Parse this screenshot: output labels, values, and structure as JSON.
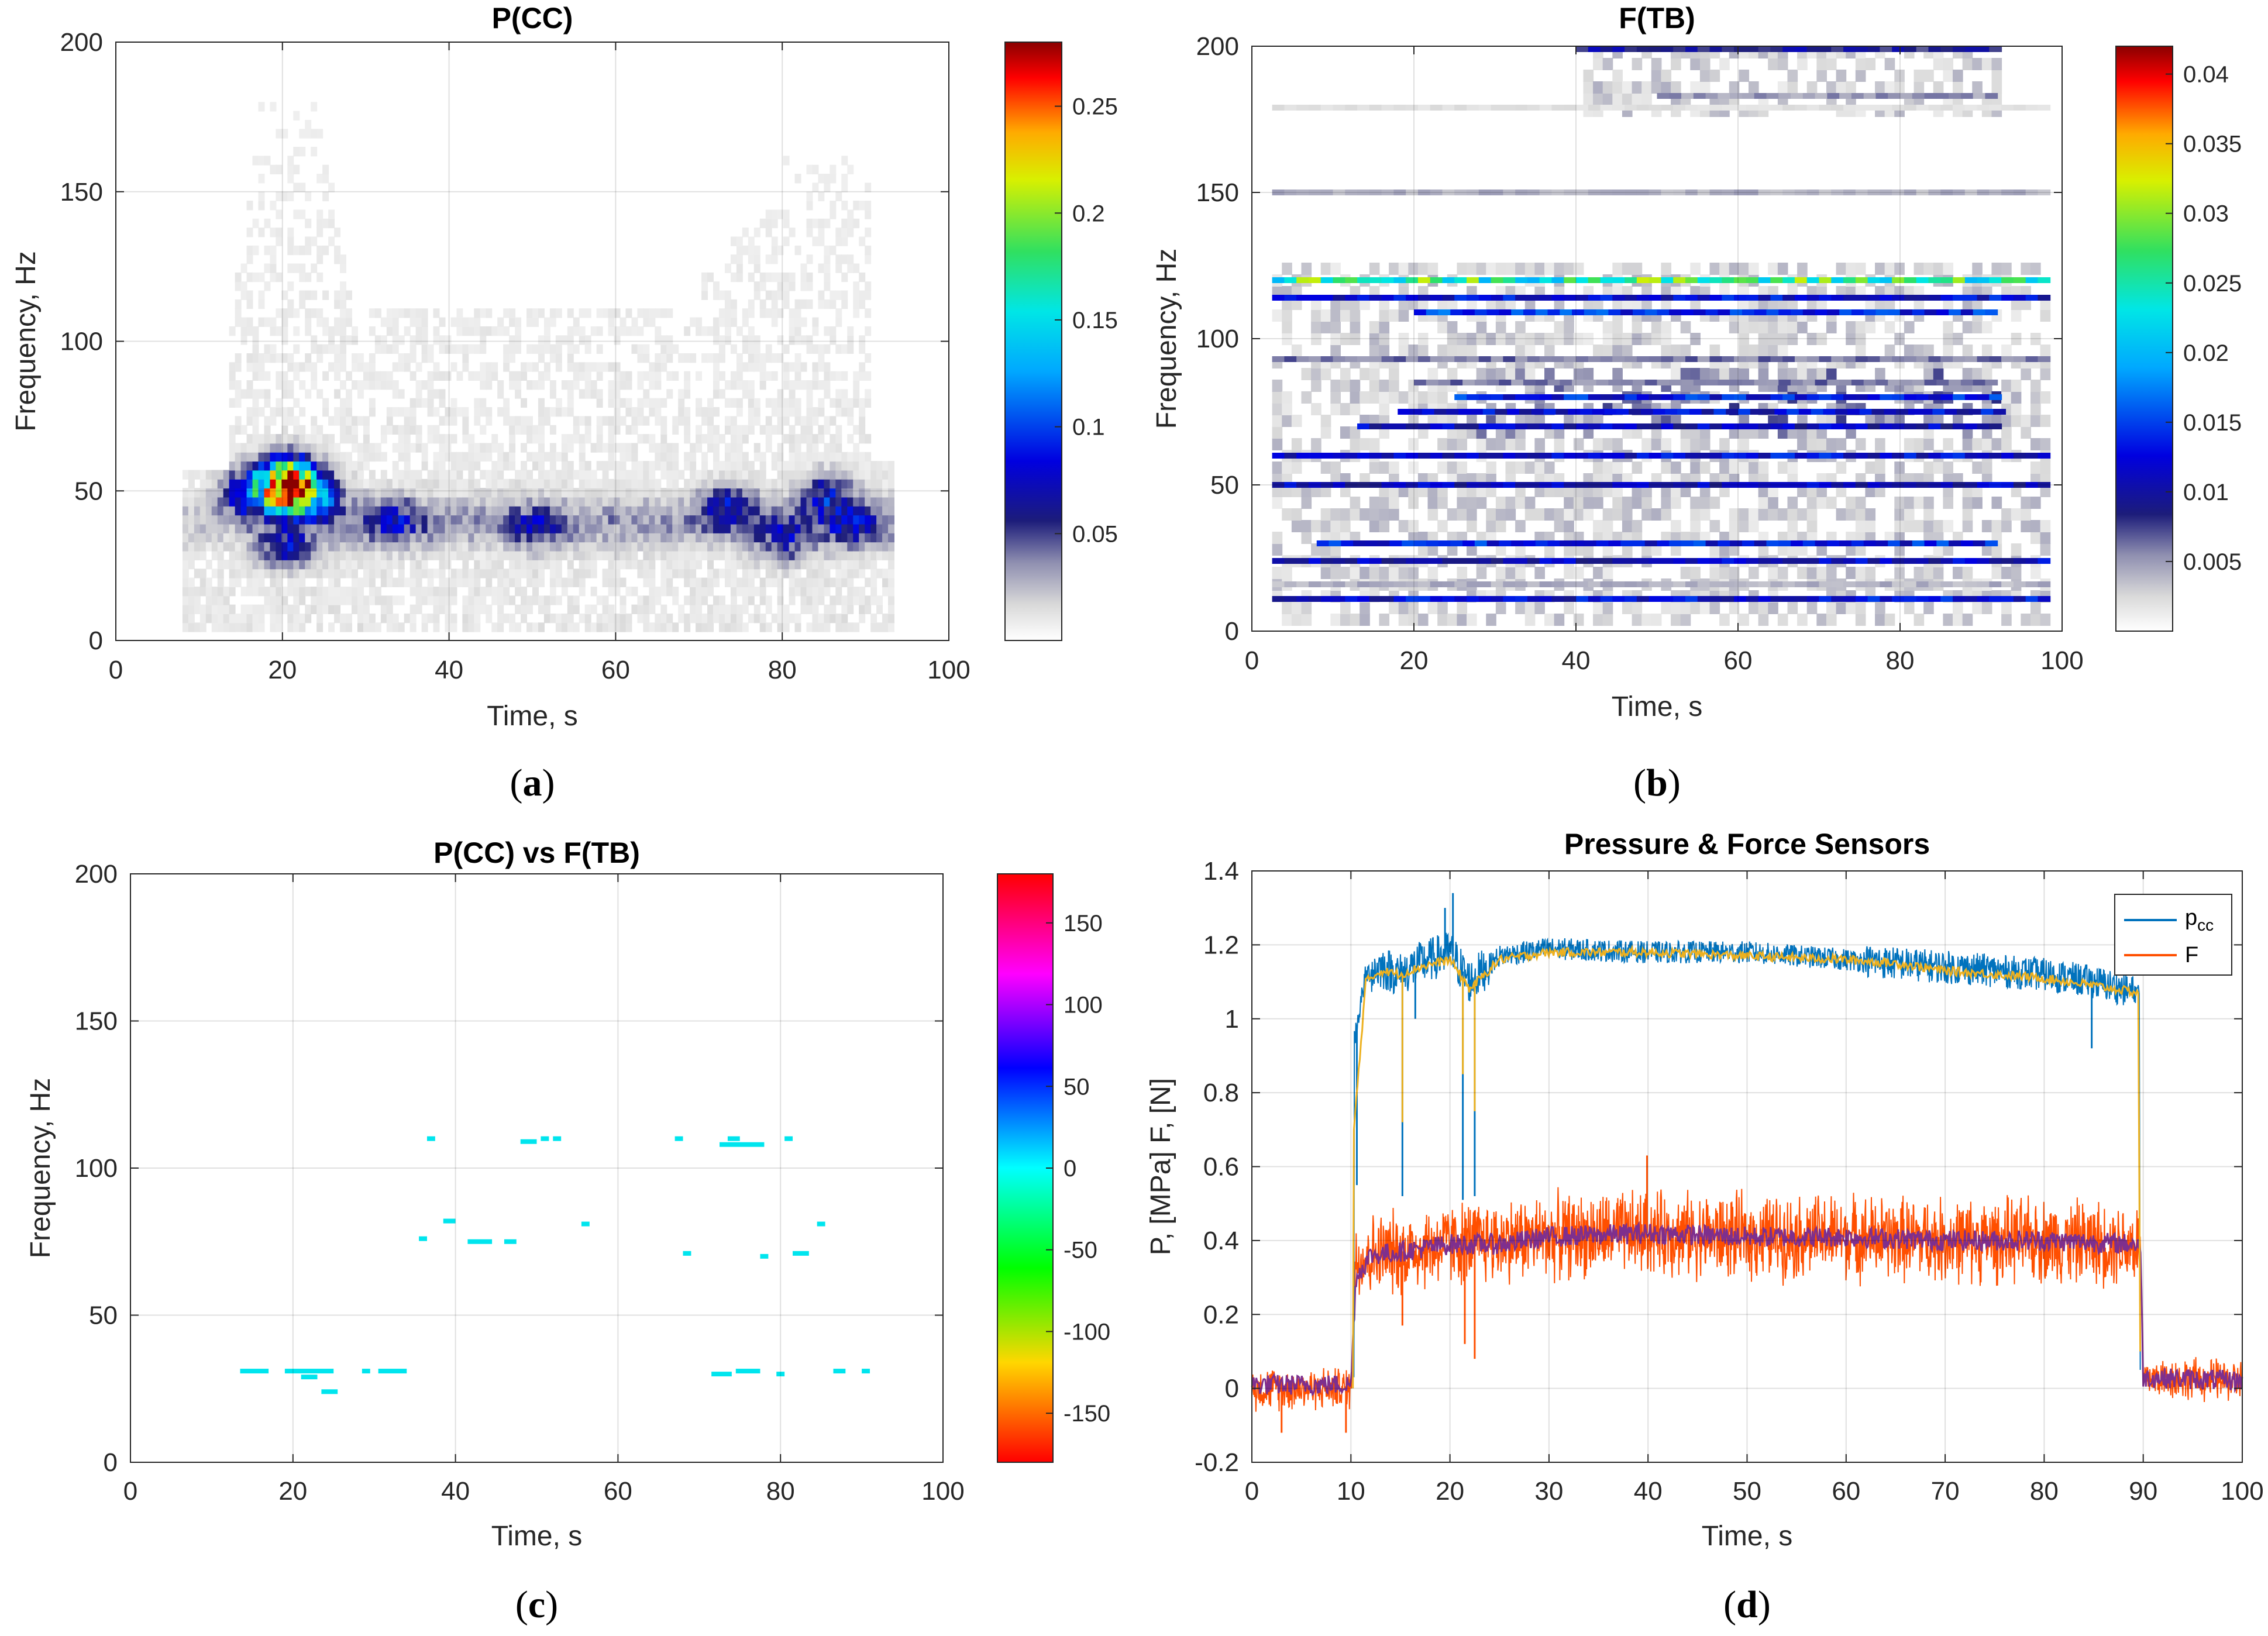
{
  "figure": {
    "panels": [
      {
        "title": "P(CC)",
        "caption_letter": "a",
        "xlabel": "Time, s",
        "ylabel": "Frequency, Hz",
        "x_ticks": [
          "0",
          "20",
          "40",
          "60",
          "80",
          "100"
        ],
        "y_ticks": [
          "0",
          "50",
          "100",
          "150",
          "200"
        ],
        "colorbar_ticks": [
          "0.05",
          "0.1",
          "0.15",
          "0.2",
          "0.25"
        ]
      },
      {
        "title": "F(TB)",
        "caption_letter": "b",
        "xlabel": "Time, s",
        "ylabel": "Frequency, Hz",
        "x_ticks": [
          "0",
          "20",
          "40",
          "60",
          "80",
          "100"
        ],
        "y_ticks": [
          "0",
          "50",
          "100",
          "150",
          "200"
        ],
        "colorbar_ticks": [
          "0.005",
          "0.01",
          "0.015",
          "0.02",
          "0.025",
          "0.03",
          "0.035",
          "0.04"
        ]
      },
      {
        "title": "P(CC) vs F(TB)",
        "caption_letter": "c",
        "xlabel": "Time, s",
        "ylabel": "Frequency, Hz",
        "x_ticks": [
          "0",
          "20",
          "40",
          "60",
          "80",
          "100"
        ],
        "y_ticks": [
          "0",
          "50",
          "100",
          "150",
          "200"
        ],
        "colorbar_ticks": [
          "-150",
          "-100",
          "-50",
          "0",
          "50",
          "100",
          "150"
        ]
      },
      {
        "title": "Pressure & Force Sensors",
        "caption_letter": "d",
        "xlabel": "Time, s",
        "ylabel": "P, [MPa]  F, [N]",
        "x_ticks": [
          "0",
          "10",
          "20",
          "30",
          "40",
          "50",
          "60",
          "70",
          "80",
          "90",
          "100"
        ],
        "y_ticks": [
          "-0.2",
          "0",
          "0.2",
          "0.4",
          "0.6",
          "0.8",
          "1",
          "1.2",
          "1.4"
        ],
        "legend": {
          "p_main": "p",
          "p_sub": "cc",
          "f": "F"
        }
      }
    ]
  },
  "chart_data": [
    {
      "type": "heatmap",
      "title": "P(CC)",
      "xlabel": "Time, s",
      "ylabel": "Frequency, Hz",
      "xlim": [
        0,
        100
      ],
      "ylim": [
        0,
        200
      ],
      "colorbar": {
        "min": 0,
        "max": 0.28,
        "ticks": [
          0.05,
          0.1,
          0.15,
          0.2,
          0.25
        ],
        "colormap": "white-gray-blue-cyan-green-yellow-red"
      },
      "data_extent": {
        "t": [
          8,
          93
        ],
        "f": [
          0,
          195
        ]
      },
      "hotspots": [
        {
          "t": 21,
          "f": 49,
          "value": 0.27
        },
        {
          "t": 20,
          "f": 54,
          "value": 0.15
        },
        {
          "t": 16,
          "f": 48,
          "value": 0.12
        },
        {
          "t": 23,
          "f": 46,
          "value": 0.1
        },
        {
          "t": 20,
          "f": 30,
          "value": 0.07
        },
        {
          "t": 33,
          "f": 39,
          "value": 0.05
        },
        {
          "t": 50,
          "f": 37,
          "value": 0.04
        },
        {
          "t": 73,
          "f": 44,
          "value": 0.06
        },
        {
          "t": 85,
          "f": 47,
          "value": 0.07
        },
        {
          "t": 88,
          "f": 37,
          "value": 0.05
        },
        {
          "t": 80,
          "f": 32,
          "value": 0.05
        }
      ]
    },
    {
      "type": "heatmap",
      "title": "F(TB)",
      "xlabel": "Time, s",
      "ylabel": "Frequency, Hz",
      "xlim": [
        0,
        100
      ],
      "ylim": [
        0,
        200
      ],
      "colorbar": {
        "min": 0,
        "max": 0.042,
        "ticks": [
          0.005,
          0.01,
          0.015,
          0.02,
          0.025,
          0.03,
          0.035,
          0.04
        ],
        "colormap": "white-gray-blue-cyan-green-yellow-red"
      },
      "data_extent": {
        "t": [
          2.5,
          98
        ],
        "f": [
          0,
          200
        ]
      },
      "bands": [
        {
          "f": 11,
          "t": [
            2.5,
            98
          ],
          "value": 0.012
        },
        {
          "f": 16,
          "t": [
            2.5,
            98
          ],
          "value": 0.004
        },
        {
          "f": 24,
          "t": [
            2.5,
            98
          ],
          "value": 0.011
        },
        {
          "f": 30,
          "t": [
            8,
            92
          ],
          "value": 0.013
        },
        {
          "f": 50,
          "t": [
            2.5,
            98
          ],
          "value": 0.011
        },
        {
          "f": 60,
          "t": [
            2.5,
            98
          ],
          "value": 0.012
        },
        {
          "f": 70,
          "t": [
            13,
            92
          ],
          "value": 0.011
        },
        {
          "f": 75,
          "t": [
            18,
            92
          ],
          "value": 0.012
        },
        {
          "f": 80,
          "t": [
            25,
            92
          ],
          "value": 0.013
        },
        {
          "f": 85,
          "t": [
            20,
            92
          ],
          "value": 0.006
        },
        {
          "f": 93,
          "t": [
            2.5,
            98
          ],
          "value": 0.006
        },
        {
          "f": 109,
          "t": [
            20,
            92
          ],
          "value": 0.014
        },
        {
          "f": 114,
          "t": [
            2.5,
            98
          ],
          "value": 0.012
        },
        {
          "f": 120,
          "t": [
            2.5,
            98
          ],
          "value": 0.026
        },
        {
          "f": 150,
          "t": [
            2.5,
            98
          ],
          "value": 0.004
        },
        {
          "f": 179,
          "t": [
            2.5,
            98
          ],
          "value": 0.002
        },
        {
          "f": 183,
          "t": [
            50,
            92
          ],
          "value": 0.005
        },
        {
          "f": 199,
          "t": [
            40,
            92
          ],
          "value": 0.009
        }
      ]
    },
    {
      "type": "heatmap",
      "title": "P(CC) vs F(TB)",
      "xlabel": "Time, s",
      "ylabel": "Frequency, Hz",
      "xlim": [
        0,
        100
      ],
      "ylim": [
        0,
        200
      ],
      "colorbar": {
        "min": -180,
        "max": 180,
        "ticks": [
          -150,
          -100,
          -50,
          0,
          50,
          100,
          150
        ],
        "colormap": "red-yellow-green-cyan-blue-magenta-red"
      },
      "points": [
        {
          "t": [
            13.5,
            17
          ],
          "f": 31
        },
        {
          "t": [
            19,
            25
          ],
          "f": 31
        },
        {
          "t": [
            21,
            23
          ],
          "f": 29
        },
        {
          "t": [
            23.5,
            25.5
          ],
          "f": 24
        },
        {
          "t": [
            28.5,
            29.5
          ],
          "f": 31
        },
        {
          "t": [
            30.5,
            34
          ],
          "f": 31
        },
        {
          "t": [
            35.5,
            36.5
          ],
          "f": 76
        },
        {
          "t": [
            36.5,
            37.5
          ],
          "f": 110
        },
        {
          "t": [
            38.5,
            40
          ],
          "f": 82
        },
        {
          "t": [
            41.5,
            44.5
          ],
          "f": 75
        },
        {
          "t": [
            46,
            47.5
          ],
          "f": 75
        },
        {
          "t": [
            48,
            50
          ],
          "f": 109
        },
        {
          "t": [
            50.5,
            51.5
          ],
          "f": 110
        },
        {
          "t": [
            52,
            53
          ],
          "f": 110
        },
        {
          "t": [
            55.5,
            56.5
          ],
          "f": 81
        },
        {
          "t": [
            67,
            68
          ],
          "f": 110
        },
        {
          "t": [
            68,
            69
          ],
          "f": 71
        },
        {
          "t": [
            71.5,
            74
          ],
          "f": 30
        },
        {
          "t": [
            72.5,
            78
          ],
          "f": 108
        },
        {
          "t": [
            73.5,
            75
          ],
          "f": 110
        },
        {
          "t": [
            74.5,
            77.5
          ],
          "f": 31
        },
        {
          "t": [
            77.5,
            78.5
          ],
          "f": 70
        },
        {
          "t": [
            79.5,
            80.5
          ],
          "f": 30
        },
        {
          "t": [
            80.5,
            81.5
          ],
          "f": 110
        },
        {
          "t": [
            81.5,
            83.5
          ],
          "f": 71
        },
        {
          "t": [
            84.5,
            85.5
          ],
          "f": 81
        },
        {
          "t": [
            86.5,
            88
          ],
          "f": 31
        },
        {
          "t": [
            90,
            91
          ],
          "f": 31
        }
      ]
    },
    {
      "type": "line",
      "title": "Pressure & Force Sensors",
      "xlabel": "Time, s",
      "ylabel": "P, [MPa]  F, [N]",
      "xlim": [
        0,
        100
      ],
      "ylim": [
        -0.2,
        1.4
      ],
      "grid": true,
      "legend_position": "top-right",
      "series": [
        {
          "name": "p_cc",
          "color": "#0072BD",
          "x": [
            10.4,
            11.5,
            13,
            15,
            17,
            20,
            22,
            25,
            30,
            40,
            50,
            60,
            65,
            70,
            80,
            85,
            89.5
          ],
          "y": [
            0.95,
            1.12,
            1.14,
            1.12,
            1.15,
            1.18,
            1.1,
            1.17,
            1.19,
            1.18,
            1.18,
            1.16,
            1.15,
            1.14,
            1.12,
            1.1,
            1.07
          ],
          "spikes": [
            {
              "x": 10.6,
              "y": 0.55
            },
            {
              "x": 15.2,
              "y": 0.52
            },
            {
              "x": 16.5,
              "y": 1.0
            },
            {
              "x": 19.5,
              "y": 1.3
            },
            {
              "x": 20.3,
              "y": 1.34
            },
            {
              "x": 21.3,
              "y": 0.51
            },
            {
              "x": 22.5,
              "y": 0.52
            },
            {
              "x": 84.8,
              "y": 0.92
            }
          ]
        },
        {
          "name": "F",
          "color": "#FF4F00",
          "x": [
            0,
            10,
            10.5,
            12,
            15,
            20,
            25,
            30,
            40,
            50,
            60,
            70,
            80,
            89.7,
            90,
            100
          ],
          "y": [
            0.0,
            0.0,
            0.35,
            0.36,
            0.37,
            0.39,
            0.4,
            0.41,
            0.42,
            0.41,
            0.41,
            0.4,
            0.4,
            0.39,
            0.03,
            0.02
          ],
          "spikes": [
            {
              "x": 3,
              "y": -0.12
            },
            {
              "x": 9.5,
              "y": -0.12
            },
            {
              "x": 15.2,
              "y": 0.17
            },
            {
              "x": 21.5,
              "y": 0.12
            },
            {
              "x": 22.5,
              "y": 0.08
            },
            {
              "x": 39.9,
              "y": 0.63
            }
          ]
        },
        {
          "name": "",
          "color": "#EDB120",
          "x": [
            10.3,
            11.5,
            13,
            15,
            17,
            20,
            22,
            25,
            30,
            40,
            50,
            60,
            65,
            70,
            80,
            85,
            89.5
          ],
          "y": [
            0.7,
            1.1,
            1.13,
            1.12,
            1.14,
            1.16,
            1.08,
            1.16,
            1.18,
            1.18,
            1.17,
            1.16,
            1.15,
            1.13,
            1.11,
            1.09,
            1.07
          ]
        },
        {
          "name": "",
          "color": "#7E2F8E",
          "x": [
            0,
            10,
            10.5,
            12,
            15,
            20,
            25,
            30,
            40,
            50,
            60,
            70,
            80,
            89.7,
            90,
            100
          ],
          "y": [
            0.01,
            0.01,
            0.3,
            0.36,
            0.37,
            0.39,
            0.39,
            0.41,
            0.42,
            0.41,
            0.41,
            0.4,
            0.4,
            0.39,
            0.03,
            0.02
          ]
        }
      ]
    }
  ]
}
